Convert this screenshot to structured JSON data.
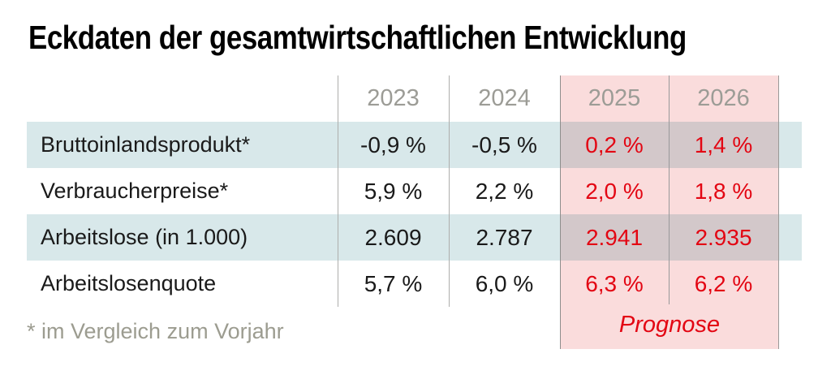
{
  "title": "Eckdaten der gesamtwirtschaftlichen Entwicklung",
  "table": {
    "year_headers": [
      "2023",
      "2024",
      "2025",
      "2026"
    ],
    "rows": [
      {
        "label": "Bruttoinlandsprodukt*",
        "values": [
          "-0,9 %",
          "-0,5 %",
          "0,2 %",
          "1,4 %"
        ]
      },
      {
        "label": "Verbraucherpreise*",
        "values": [
          "5,9 %",
          "2,2 %",
          "2,0 %",
          "1,8 %"
        ]
      },
      {
        "label": "Arbeitslose (in 1.000)",
        "values": [
          "2.609",
          "2.787",
          "2.941",
          "2.935"
        ]
      },
      {
        "label": "Arbeitslosenquote",
        "values": [
          "5,7 %",
          "6,0 %",
          "6,3 %",
          "6,2 %"
        ]
      }
    ],
    "forecast_label": "Prognose"
  },
  "footnote": "* im Vergleich zum Vorjahr",
  "colors": {
    "accent_red": "#e30613",
    "stripe_blue": "#d8e8ea",
    "forecast_pink": "#fadcdc",
    "year_gray": "#9c9c96",
    "footnote_gray": "#9c9c90"
  },
  "chart_data": {
    "type": "table",
    "title": "Eckdaten der gesamtwirtschaftlichen Entwicklung",
    "columns": [
      "",
      "2023",
      "2024",
      "2025",
      "2026"
    ],
    "forecast_columns": [
      "2025",
      "2026"
    ],
    "rows": [
      {
        "label": "Bruttoinlandsprodukt*",
        "values": [
          "-0,9 %",
          "-0,5 %",
          "0,2 %",
          "1,4 %"
        ],
        "numeric": [
          -0.9,
          -0.5,
          0.2,
          1.4
        ]
      },
      {
        "label": "Verbraucherpreise*",
        "values": [
          "5,9 %",
          "2,2 %",
          "2,0 %",
          "1,8 %"
        ],
        "numeric": [
          5.9,
          2.2,
          2.0,
          1.8
        ]
      },
      {
        "label": "Arbeitslose (in 1.000)",
        "values": [
          "2.609",
          "2.787",
          "2.941",
          "2.935"
        ],
        "numeric": [
          2609,
          2787,
          2941,
          2935
        ]
      },
      {
        "label": "Arbeitslosenquote",
        "values": [
          "5,7 %",
          "6,0 %",
          "6,3 %",
          "6,2 %"
        ],
        "numeric": [
          5.7,
          6.0,
          6.3,
          6.2
        ]
      }
    ],
    "annotations": [
      "Prognose",
      "* im Vergleich zum Vorjahr"
    ],
    "layout": {
      "zebra_stripes": true,
      "forecast_highlight": "2025-2026",
      "grid": "vertical-dividers-only"
    }
  }
}
